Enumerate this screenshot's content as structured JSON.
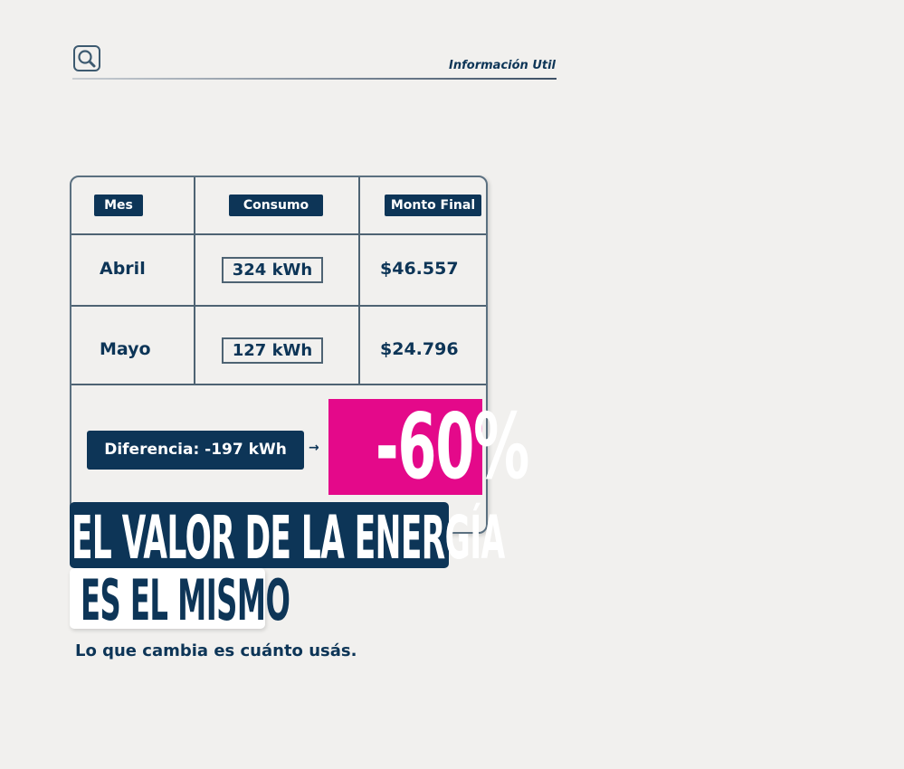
{
  "header": {
    "brand_label": "Información Util",
    "logo_icon": "magnifier-icon"
  },
  "table": {
    "headers": [
      "Mes",
      "Consumo",
      "Monto Final"
    ],
    "rows": [
      {
        "mes": "Abril",
        "consumo": "324 kWh",
        "monto": "$46.557"
      },
      {
        "mes": "Mayo",
        "consumo": "127 kWh",
        "monto": "$24.796"
      }
    ],
    "difference": "Diferencia: -197 kWh",
    "arrow": "→",
    "percent": "-60%"
  },
  "headline": {
    "line1": "EL VALOR DE LA ENERGÍA",
    "line2": "ES EL MISMO"
  },
  "subtitle": "Lo que cambia es cuánto usás.",
  "colors": {
    "navy": "#0d3557",
    "pink": "#e4098a",
    "background": "#f1f0ee"
  }
}
